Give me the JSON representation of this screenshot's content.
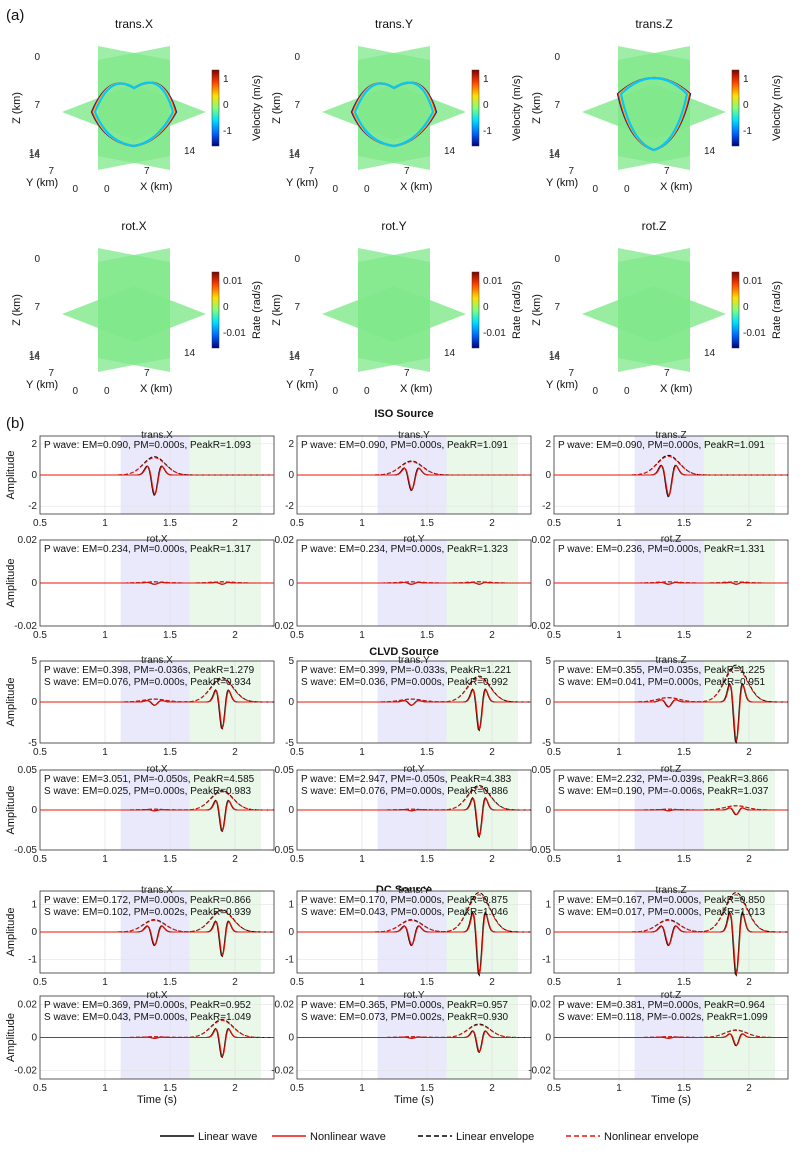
{
  "panel_labels": {
    "a": "(a)",
    "b": "(b)"
  },
  "part_a": {
    "rows": [
      {
        "colorbar_label": "Velocity (m/s)",
        "colorbar_ticks": [
          "1",
          "0",
          "-1"
        ],
        "panels": [
          {
            "title": "trans.X",
            "wave": "x"
          },
          {
            "title": "trans.Y",
            "wave": "y"
          },
          {
            "title": "trans.Z",
            "wave": "z"
          }
        ]
      },
      {
        "colorbar_label": "Rate (rad/s)",
        "colorbar_ticks": [
          "0.01",
          "0",
          "-0.01"
        ],
        "panels": [
          {
            "title": "rot.X",
            "wave": "none"
          },
          {
            "title": "rot.Y",
            "wave": "none"
          },
          {
            "title": "rot.Z",
            "wave": "none"
          }
        ]
      }
    ],
    "axes": {
      "zlabel": "Z (km)",
      "ylabel": "Y (km)",
      "xlabel": "X (km)",
      "z_ticks": [
        "0",
        "7",
        "14"
      ],
      "y_ticks": [
        "14",
        "7",
        "0"
      ],
      "x_ticks": [
        "0",
        "7",
        "14"
      ]
    },
    "colors": {
      "slice": "#7fe88a",
      "colormap": [
        "#00007f",
        "#0060ff",
        "#00e0ff",
        "#7fff7f",
        "#ffe000",
        "#ff4000",
        "#7f0000"
      ]
    }
  },
  "chart_data": {
    "type": "line",
    "xlabel": "Time (s)",
    "ylabel": "Amplitude",
    "xlim": [
      0.5,
      2.3
    ],
    "x_ticks": [
      "0.5",
      "1",
      "1.5",
      "2"
    ],
    "p_window": [
      1.12,
      1.65
    ],
    "s_window": [
      1.65,
      2.2
    ],
    "legend": [
      "Linear wave",
      "Nonlinear wave",
      "Linear envelope",
      "Nonlinear envelope"
    ],
    "colors": {
      "linear": "#000000",
      "nonlinear": "#e8140a",
      "p_shade": "#e9e9fb",
      "s_shade": "#e9f8e9"
    },
    "sections": [
      {
        "title": "ISO Source",
        "rows": [
          {
            "ylim": [
              -2.5,
              2.5
            ],
            "y_ticks": [
              -2,
              0,
              2
            ],
            "y_tick_labels": [
              "-2",
              "0",
              "2"
            ],
            "panels": [
              {
                "title": "trans.X",
                "lines": [
                  "P wave: EM=0.090, PM=0.000s, PeakR=1.093"
                ],
                "p_amp": 1.3,
                "s_amp": 0.0
              },
              {
                "title": "trans.Y",
                "lines": [
                  "P wave: EM=0.090, PM=0.000s, PeakR=1.091"
                ],
                "p_amp": 1.0,
                "s_amp": 0.0
              },
              {
                "title": "trans.Z",
                "lines": [
                  "P wave: EM=0.090, PM=0.000s, PeakR=1.091"
                ],
                "p_amp": 1.4,
                "s_amp": 0.0
              }
            ]
          },
          {
            "ylim": [
              -0.02,
              0.02
            ],
            "y_ticks": [
              -0.02,
              0,
              0.02
            ],
            "y_tick_labels": [
              "-0.02",
              "0",
              "0.02"
            ],
            "panels": [
              {
                "title": "rot.X",
                "lines": [
                  "P wave: EM=0.234, PM=0.000s, PeakR=1.317"
                ],
                "p_amp": 0.0006,
                "s_amp": 0.0006
              },
              {
                "title": "rot.Y",
                "lines": [
                  "P wave: EM=0.234, PM=0.000s, PeakR=1.323"
                ],
                "p_amp": 0.0006,
                "s_amp": 0.0006
              },
              {
                "title": "rot.Z",
                "lines": [
                  "P wave: EM=0.236, PM=0.000s, PeakR=1.331"
                ],
                "p_amp": 0.0006,
                "s_amp": 0.0006
              }
            ]
          }
        ]
      },
      {
        "title": "CLVD Source",
        "rows": [
          {
            "ylim": [
              -5,
              5
            ],
            "y_ticks": [
              -5,
              0,
              5
            ],
            "y_tick_labels": [
              "-5",
              "0",
              "5"
            ],
            "panels": [
              {
                "title": "trans.X",
                "lines": [
                  "P wave: EM=0.398, PM=-0.036s, PeakR=1.279",
                  "S wave: EM=0.076, PM=0.000s, PeakR=0.934"
                ],
                "p_amp": 0.4,
                "s_amp": 3.3
              },
              {
                "title": "trans.Y",
                "lines": [
                  "P wave: EM=0.399, PM=-0.033s, PeakR=1.221",
                  "S wave: EM=0.036, PM=0.000s, PeakR=0.992"
                ],
                "p_amp": 0.4,
                "s_amp": 3.5
              },
              {
                "title": "trans.Z",
                "lines": [
                  "P wave: EM=0.355, PM=0.035s, PeakR=1.225",
                  "S wave: EM=0.041, PM=0.000s, PeakR=0.951"
                ],
                "p_amp": 0.6,
                "s_amp": 5.0
              }
            ]
          },
          {
            "ylim": [
              -0.05,
              0.05
            ],
            "y_ticks": [
              -0.05,
              0,
              0.05
            ],
            "y_tick_labels": [
              "-0.05",
              "0",
              "0.05"
            ],
            "panels": [
              {
                "title": "rot.X",
                "lines": [
                  "P wave: EM=3.051, PM=-0.050s, PeakR=4.585",
                  "S wave: EM=0.025, PM=0.000s, PeakR=0.983"
                ],
                "p_amp": 0.001,
                "s_amp": 0.027
              },
              {
                "title": "rot.Y",
                "lines": [
                  "P wave: EM=2.947, PM=-0.050s, PeakR=4.383",
                  "S wave: EM=0.076, PM=0.000s, PeakR=0.886"
                ],
                "p_amp": 0.001,
                "s_amp": 0.034
              },
              {
                "title": "rot.Z",
                "lines": [
                  "P wave: EM=2.232, PM=-0.039s, PeakR=3.866",
                  "S wave: EM=0.190, PM=-0.006s, PeakR=1.037"
                ],
                "p_amp": 0.001,
                "s_amp": 0.006
              }
            ]
          }
        ]
      },
      {
        "title": "DC Source",
        "rows": [
          {
            "ylim": [
              -1.5,
              1.5
            ],
            "y_ticks": [
              -1,
              0,
              1
            ],
            "y_tick_labels": [
              "-1",
              "0",
              "1"
            ],
            "panels": [
              {
                "title": "trans.X",
                "lines": [
                  "P wave: EM=0.172, PM=0.000s, PeakR=0.866",
                  "S wave: EM=0.102, PM=0.002s, PeakR=0.939"
                ],
                "p_amp": 0.5,
                "s_amp": 0.9
              },
              {
                "title": "trans.Y",
                "lines": [
                  "P wave: EM=0.170, PM=0.000s, PeakR=0.875",
                  "S wave: EM=0.043, PM=0.000s, PeakR=1.046"
                ],
                "p_amp": 0.5,
                "s_amp": 1.6
              },
              {
                "title": "trans.Z",
                "lines": [
                  "P wave: EM=0.167, PM=0.000s, PeakR=0.850",
                  "S wave: EM=0.017, PM=0.000s, PeakR=1.013"
                ],
                "p_amp": 0.5,
                "s_amp": 1.6
              }
            ]
          },
          {
            "ylim": [
              -0.025,
              0.025
            ],
            "y_ticks": [
              -0.02,
              0,
              0.02
            ],
            "y_tick_labels": [
              "-0.02",
              "0",
              "0.02"
            ],
            "panels": [
              {
                "title": "rot.X",
                "lines": [
                  "P wave: EM=0.369, PM=0.000s, PeakR=0.952",
                  "S wave: EM=0.043, PM=0.000s, PeakR=1.049"
                ],
                "p_amp": 0.0005,
                "s_amp": 0.012
              },
              {
                "title": "rot.Y",
                "lines": [
                  "P wave: EM=0.365, PM=0.000s, PeakR=0.957",
                  "S wave: EM=0.073, PM=0.002s, PeakR=0.930"
                ],
                "p_amp": 0.0005,
                "s_amp": 0.009
              },
              {
                "title": "rot.Z",
                "lines": [
                  "P wave: EM=0.381, PM=0.000s, PeakR=0.964",
                  "S wave: EM=0.118, PM=-0.002s, PeakR=1.099"
                ],
                "p_amp": 0.0005,
                "s_amp": 0.005
              }
            ]
          }
        ]
      }
    ]
  }
}
